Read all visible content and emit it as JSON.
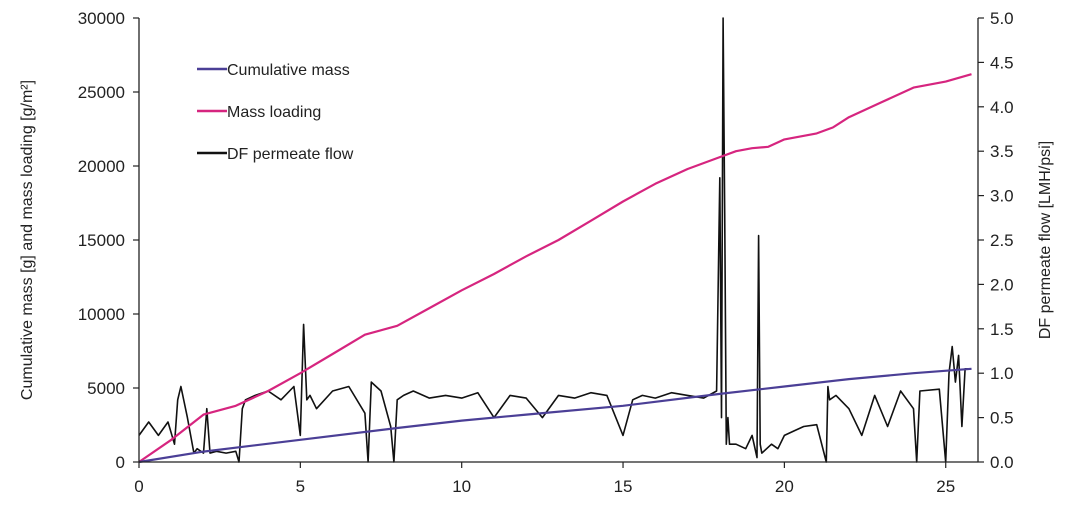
{
  "chart_data": {
    "type": "line",
    "title": "",
    "xlabel": "",
    "ylabel_left": "Cumulative mass [g] and mass loading [g/m²]",
    "ylabel_right": "DF permeate flow [LMH/psi]",
    "xlim": [
      0,
      26
    ],
    "ylim_left": [
      0,
      30000
    ],
    "ylim_right": [
      0,
      5.0
    ],
    "x_ticks": [
      "0",
      "5",
      "10",
      "15",
      "20",
      "25"
    ],
    "y_left_ticks": [
      "0",
      "5000",
      "10000",
      "15000",
      "20000",
      "25000",
      "30000"
    ],
    "y_right_ticks": [
      "0.0",
      "0.5",
      "1.0",
      "1.5",
      "2.0",
      "2.5",
      "3.0",
      "3.5",
      "4.0",
      "4.5",
      "5.0"
    ],
    "legend_position": "top-left",
    "series": [
      {
        "name": "Cumulative mass",
        "axis": "left",
        "color": "#4b3f96",
        "x": [
          0,
          2,
          5,
          8,
          10,
          12,
          15,
          18,
          20,
          22,
          24,
          25.8
        ],
        "values": [
          0,
          700,
          1500,
          2300,
          2800,
          3200,
          3800,
          4600,
          5100,
          5600,
          6000,
          6300
        ]
      },
      {
        "name": "Mass loading",
        "axis": "left",
        "color": "#d6257f",
        "x": [
          0,
          1,
          2,
          3,
          4,
          5,
          6,
          7,
          8,
          9,
          10,
          11,
          12,
          13,
          14,
          15,
          16,
          17,
          18,
          18.5,
          19,
          19.5,
          20,
          21,
          21.5,
          22,
          23,
          24,
          24.5,
          25,
          25.8
        ],
        "values": [
          0,
          1500,
          3200,
          3800,
          4800,
          6000,
          7300,
          8600,
          9200,
          10400,
          11600,
          12700,
          13900,
          15000,
          16300,
          17600,
          18800,
          19800,
          20600,
          21000,
          21200,
          21300,
          21800,
          22200,
          22600,
          23300,
          24300,
          25300,
          25500,
          25700,
          26200
        ]
      },
      {
        "name": "DF permeate flow",
        "axis": "right",
        "color": "#111111",
        "x": [
          0,
          0.3,
          0.6,
          0.9,
          1.1,
          1.2,
          1.3,
          1.5,
          1.7,
          1.8,
          2.0,
          2.1,
          2.2,
          2.4,
          2.7,
          3.0,
          3.1,
          3.2,
          3.3,
          3.6,
          4.0,
          4.4,
          4.8,
          5.0,
          5.1,
          5.2,
          5.3,
          5.5,
          6.0,
          6.5,
          7.0,
          7.1,
          7.2,
          7.5,
          7.8,
          7.9,
          8.0,
          8.2,
          8.5,
          9.0,
          9.5,
          10.0,
          10.5,
          11.0,
          11.5,
          12.0,
          12.5,
          13.0,
          13.5,
          14.0,
          14.5,
          15.0,
          15.3,
          15.6,
          16.0,
          16.5,
          17.0,
          17.5,
          17.9,
          18.0,
          18.05,
          18.1,
          18.15,
          18.2,
          18.25,
          18.3,
          18.5,
          18.8,
          19.0,
          19.15,
          19.2,
          19.25,
          19.3,
          19.6,
          19.8,
          20.0,
          20.3,
          20.6,
          21.0,
          21.3,
          21.35,
          21.4,
          21.6,
          22.0,
          22.4,
          22.8,
          23.2,
          23.6,
          24.0,
          24.1,
          24.2,
          24.8,
          25.0,
          25.1,
          25.2,
          25.3,
          25.4,
          25.5,
          25.6,
          25.8
        ],
        "values": [
          0.3,
          0.45,
          0.3,
          0.45,
          0.2,
          0.7,
          0.85,
          0.5,
          0.1,
          0.15,
          0.1,
          0.6,
          0.1,
          0.12,
          0.1,
          0.12,
          0.0,
          0.6,
          0.7,
          0.75,
          0.8,
          0.7,
          0.85,
          0.3,
          1.55,
          0.7,
          0.75,
          0.6,
          0.8,
          0.85,
          0.55,
          0.0,
          0.9,
          0.8,
          0.4,
          0.0,
          0.7,
          0.75,
          0.8,
          0.72,
          0.75,
          0.72,
          0.78,
          0.5,
          0.75,
          0.72,
          0.5,
          0.75,
          0.72,
          0.78,
          0.75,
          0.3,
          0.7,
          0.75,
          0.72,
          0.78,
          0.75,
          0.72,
          0.8,
          3.2,
          0.5,
          5.0,
          2.8,
          0.2,
          0.5,
          0.2,
          0.2,
          0.15,
          0.3,
          0.05,
          2.55,
          0.2,
          0.1,
          0.2,
          0.15,
          0.3,
          0.35,
          0.4,
          0.42,
          0.0,
          0.85,
          0.7,
          0.75,
          0.6,
          0.3,
          0.75,
          0.4,
          0.8,
          0.6,
          0.0,
          0.8,
          0.82,
          0.0,
          1.0,
          1.3,
          0.9,
          1.2,
          0.4,
          1.05,
          1.05
        ]
      }
    ]
  }
}
